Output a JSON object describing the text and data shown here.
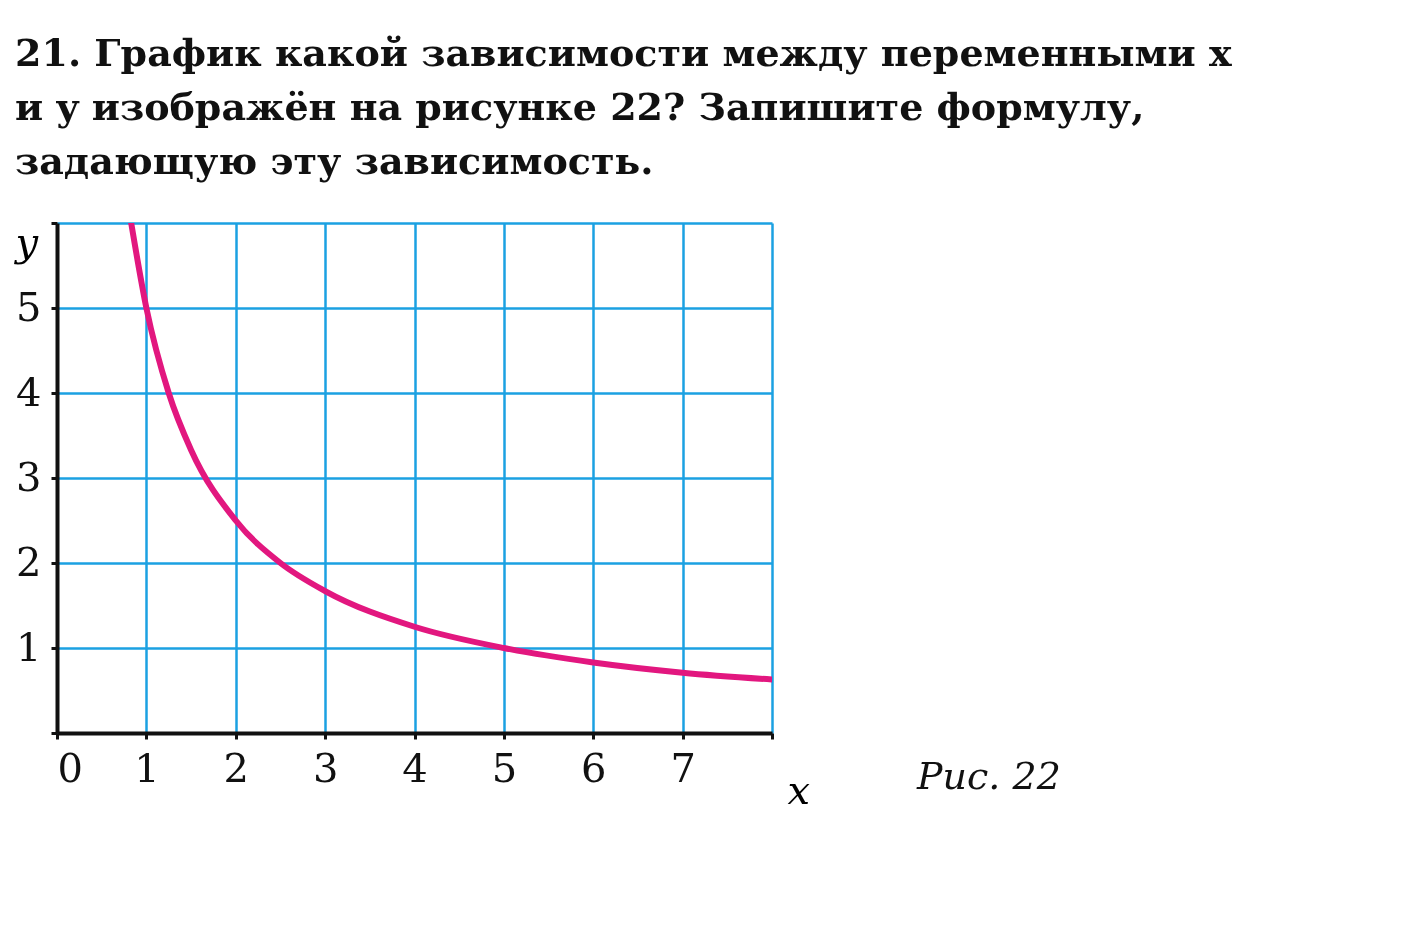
{
  "chart_data": {
    "type": "line",
    "title": "21. График какой зависимости между переменными x и y изображён на рисунке 22? Запишите формулу, задающую эту зависимость.",
    "xlabel": "x",
    "ylabel": "y",
    "x": [
      0.83,
      1,
      1.25,
      1.5,
      2,
      2.5,
      3,
      4,
      5,
      6,
      7,
      8
    ],
    "series": [
      {
        "color": "#e2177f",
        "values": [
          6,
          5,
          4,
          3.33,
          2.5,
          2,
          1.67,
          1.25,
          1,
          0.83,
          0.71,
          0.63
        ]
      }
    ],
    "xlim": [
      0,
      8
    ],
    "ylim": [
      0,
      6
    ],
    "xticks": [
      0,
      1,
      2,
      3,
      4,
      5,
      6,
      7,
      {
        "value": 8,
        "label": null
      }
    ],
    "yticks": [
      {
        "value": 0,
        "label": null
      },
      1,
      2,
      3,
      4,
      5,
      {
        "value": 6,
        "label": null
      }
    ],
    "grid": true,
    "marker": "none",
    "line_style": "solid",
    "annotations": [
      "Рис. 22"
    ]
  }
}
